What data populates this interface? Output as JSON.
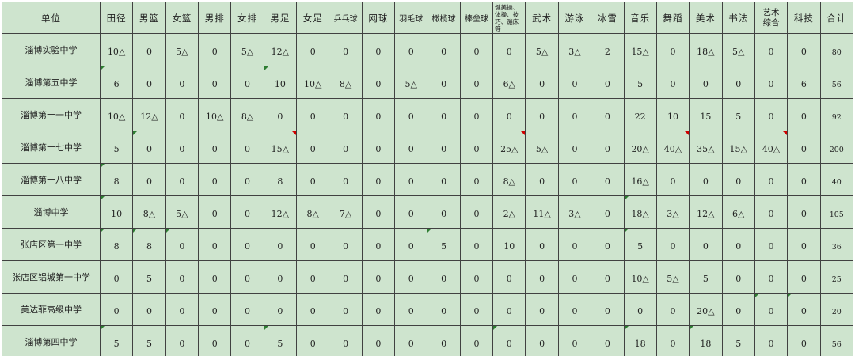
{
  "table": {
    "unit_header": "单位",
    "columns": [
      "田径",
      "男篮",
      "女篮",
      "男排",
      "女排",
      "男足",
      "女足",
      "乒乓球",
      "网球",
      "羽毛球",
      "橄榄球",
      "棒垒球",
      "健美操、体操、技巧、蹦床等",
      "武术",
      "游泳",
      "冰雪",
      "音乐",
      "舞蹈",
      "美术",
      "书法",
      "艺术综合",
      "科技",
      "合计"
    ],
    "rows": [
      {
        "name": "淄博实验中学",
        "values": [
          "10△",
          "0",
          "5△",
          "0",
          "5△",
          "12△",
          "0",
          "0",
          "0",
          "0",
          "0",
          "0",
          "0",
          "5△",
          "3△",
          "2",
          "15△",
          "0",
          "18△",
          "5△",
          "0",
          "0",
          "80"
        ],
        "green_corners": [],
        "red_corners": []
      },
      {
        "name": "淄博第五中学",
        "values": [
          "6",
          "0",
          "0",
          "0",
          "0",
          "10",
          "10△",
          "8△",
          "0",
          "5△",
          "0",
          "0",
          "6△",
          "0",
          "0",
          "0",
          "5",
          "0",
          "0",
          "0",
          "0",
          "6",
          "56"
        ],
        "green_corners": [
          0,
          5
        ],
        "red_corners": []
      },
      {
        "name": "淄博第十一中学",
        "values": [
          "10△",
          "12△",
          "0",
          "10△",
          "8△",
          "0",
          "0",
          "0",
          "0",
          "0",
          "0",
          "0",
          "0",
          "0",
          "0",
          "0",
          "22",
          "10",
          "15",
          "5",
          "0",
          "0",
          "92"
        ],
        "green_corners": [],
        "red_corners": []
      },
      {
        "name": "淄博第十七中学",
        "values": [
          "5",
          "0",
          "0",
          "0",
          "0",
          "15△",
          "0",
          "0",
          "0",
          "0",
          "0",
          "0",
          "25△",
          "5△",
          "0",
          "0",
          "20△",
          "40△",
          "35△",
          "15△",
          "40△",
          "0",
          "200"
        ],
        "green_corners": [
          1
        ],
        "red_corners": [
          5,
          12,
          17,
          20
        ]
      },
      {
        "name": "淄博第十八中学",
        "values": [
          "8",
          "0",
          "0",
          "0",
          "0",
          "8",
          "0",
          "0",
          "0",
          "0",
          "0",
          "0",
          "8△",
          "0",
          "0",
          "0",
          "16△",
          "0",
          "0",
          "0",
          "0",
          "0",
          "40"
        ],
        "green_corners": [
          0
        ],
        "red_corners": []
      },
      {
        "name": "淄博中学",
        "values": [
          "10",
          "8△",
          "5△",
          "0",
          "0",
          "12△",
          "8△",
          "7△",
          "0",
          "0",
          "0",
          "0",
          "2△",
          "11△",
          "3△",
          "0",
          "18△",
          "3△",
          "12△",
          "6△",
          "0",
          "0",
          "105"
        ],
        "green_corners": [
          0,
          16
        ],
        "red_corners": []
      },
      {
        "name": "张店区第一中学",
        "values": [
          "8",
          "8",
          "0",
          "0",
          "0",
          "0",
          "0",
          "0",
          "0",
          "0",
          "5",
          "0",
          "10",
          "0",
          "0",
          "0",
          "5",
          "0",
          "0",
          "0",
          "0",
          "0",
          "36"
        ],
        "green_corners": [
          0,
          1,
          2,
          10,
          16
        ],
        "red_corners": []
      },
      {
        "name": "张店区铝城第一中学",
        "values": [
          "0",
          "5",
          "0",
          "0",
          "0",
          "0",
          "0",
          "0",
          "0",
          "0",
          "0",
          "0",
          "0",
          "0",
          "0",
          "0",
          "10△",
          "5△",
          "5",
          "0",
          "0",
          "0",
          "25"
        ],
        "green_corners": [],
        "red_corners": []
      },
      {
        "name": "美达菲高级中学",
        "values": [
          "0",
          "0",
          "0",
          "0",
          "0",
          "0",
          "0",
          "0",
          "0",
          "0",
          "0",
          "0",
          "0",
          "0",
          "0",
          "0",
          "0",
          "0",
          "20△",
          "0",
          "0",
          "0",
          "20"
        ],
        "green_corners": [
          20,
          21
        ],
        "red_corners": []
      },
      {
        "name": "淄博第四中学",
        "values": [
          "5",
          "5",
          "0",
          "0",
          "0",
          "5",
          "0",
          "0",
          "0",
          "0",
          "0",
          "0",
          "0",
          "0",
          "0",
          "0",
          "18",
          "0",
          "18",
          "5",
          "0",
          "0",
          "56"
        ],
        "green_corners": [
          0,
          5,
          12,
          16,
          18
        ],
        "red_corners": []
      }
    ],
    "colors": {
      "cell_bg": "#cee4ce",
      "border": "#414141",
      "text": "#222222",
      "green_corner_marker": "#2e7d32",
      "red_corner_marker": "#d00000"
    }
  }
}
